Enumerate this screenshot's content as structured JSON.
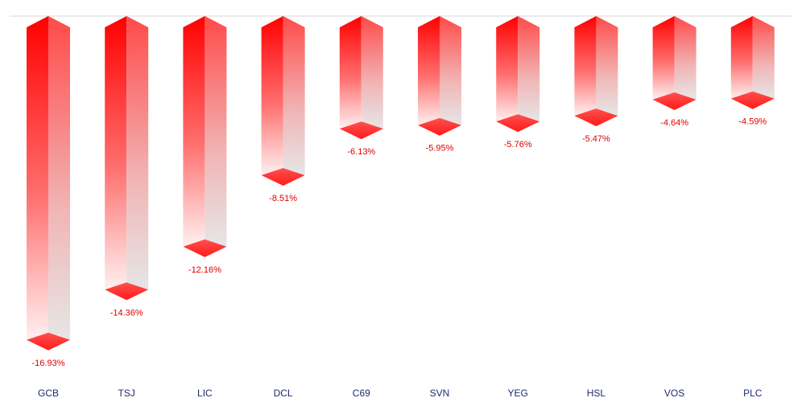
{
  "chart_data": {
    "type": "bar",
    "style": "3d-inverted-columns",
    "categories": [
      "GCB",
      "TSJ",
      "LIC",
      "DCL",
      "C69",
      "SVN",
      "YEG",
      "HSL",
      "VOS",
      "PLC"
    ],
    "values": [
      -16.93,
      -14.36,
      -12.16,
      -8.51,
      -6.13,
      -5.95,
      -5.76,
      -5.47,
      -4.64,
      -4.59
    ],
    "value_labels": [
      "-16.93%",
      "-14.36%",
      "-12.16%",
      "-8.51%",
      "-6.13%",
      "-5.95%",
      "-5.76%",
      "-5.47%",
      "-4.64%",
      "-4.59%"
    ],
    "ylim": [
      -18.5,
      0
    ],
    "grid": false,
    "legend": "none",
    "colors": {
      "bar_top": "#ff0000",
      "bar_fade": "#ececec",
      "label": "#e00000",
      "category": "#1f2a6e",
      "baseline": "#d9d9d9"
    }
  }
}
